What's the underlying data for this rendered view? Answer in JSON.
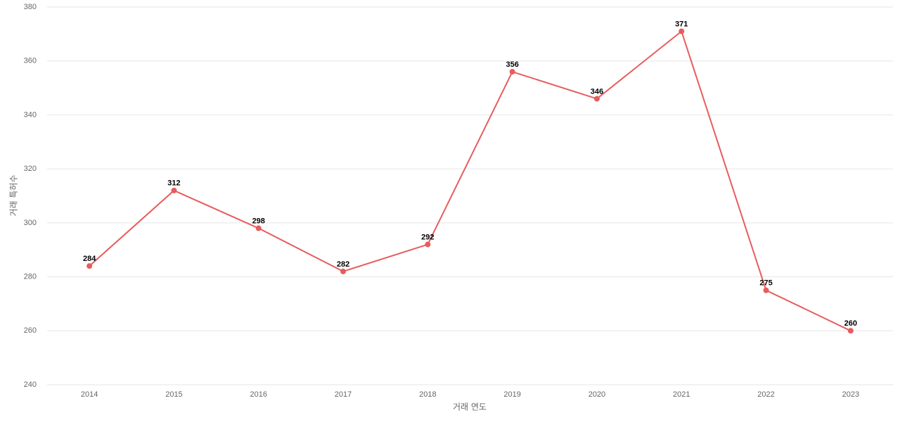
{
  "chart_data": {
    "type": "line",
    "x_label": "거래 연도",
    "y_label": "거래 특허수",
    "categories": [
      "2014",
      "2015",
      "2016",
      "2017",
      "2018",
      "2019",
      "2020",
      "2021",
      "2022",
      "2023"
    ],
    "values": [
      284,
      312,
      298,
      282,
      292,
      356,
      346,
      371,
      275,
      260
    ],
    "color": "#e85c5c",
    "ylim": [
      240,
      380
    ],
    "yticks": [
      240,
      260,
      280,
      300,
      320,
      340,
      360,
      380
    ],
    "grid": true
  }
}
